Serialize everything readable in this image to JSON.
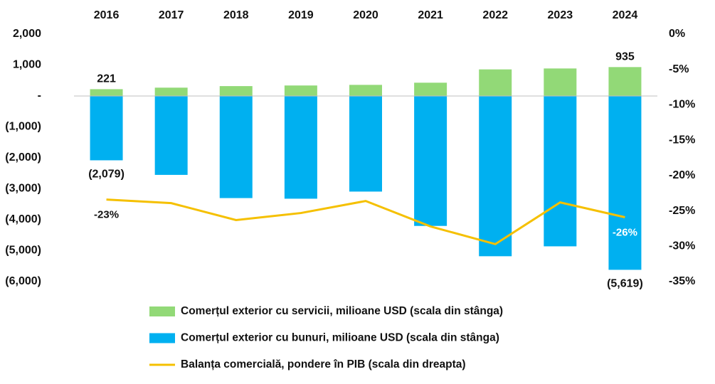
{
  "chart_data": {
    "type": "bar",
    "categories": [
      "2016",
      "2017",
      "2018",
      "2019",
      "2020",
      "2021",
      "2022",
      "2023",
      "2024"
    ],
    "series": [
      {
        "name": "Comerțul exterior cu servicii, milioane USD (scala din stânga)",
        "color": "#92d977",
        "values": [
          221,
          270,
          320,
          340,
          360,
          430,
          860,
          890,
          935
        ],
        "value_labels": [
          "221",
          null,
          null,
          null,
          null,
          null,
          null,
          null,
          "935"
        ]
      },
      {
        "name": "Comerțul exterior cu bunuri, milioane USD (scala din stânga)",
        "color": "#00b0f0",
        "values": [
          -2079,
          -2550,
          -3300,
          -3320,
          -3090,
          -4200,
          -5180,
          -4860,
          -5619
        ],
        "value_labels": [
          "(2,079)",
          null,
          null,
          null,
          null,
          null,
          null,
          null,
          "(5,619)"
        ]
      },
      {
        "name": "Balanța comercială, pondere în PIB (scala din dreapta)",
        "color": "#f5c000",
        "type": "line",
        "axis": "y2",
        "values": [
          -23.4,
          -23.9,
          -26.3,
          -25.3,
          -23.6,
          -27.2,
          -29.7,
          -23.8,
          -25.9
        ],
        "value_labels": [
          "-23%",
          null,
          null,
          null,
          null,
          null,
          null,
          null,
          "-26%"
        ]
      }
    ],
    "ylim": [
      -6000,
      2000
    ],
    "yticks": [
      {
        "value": -6000,
        "label": "(6,000)"
      },
      {
        "value": -5000,
        "label": "(5,000)"
      },
      {
        "value": -4000,
        "label": "(4,000)"
      },
      {
        "value": -3000,
        "label": "(3,000)"
      },
      {
        "value": -2000,
        "label": "(2,000)"
      },
      {
        "value": -1000,
        "label": "(1,000)"
      },
      {
        "value": 0,
        "label": "-"
      },
      {
        "value": 1000,
        "label": "1,000"
      },
      {
        "value": 2000,
        "label": "2,000"
      }
    ],
    "y2lim": [
      -35,
      0
    ],
    "y2ticks": [
      {
        "value": -35,
        "label": "-35%"
      },
      {
        "value": -30,
        "label": "-30%"
      },
      {
        "value": -25,
        "label": "-25%"
      },
      {
        "value": -20,
        "label": "-20%"
      },
      {
        "value": -15,
        "label": "-15%"
      },
      {
        "value": -10,
        "label": "-10%"
      },
      {
        "value": -5,
        "label": "-5%"
      },
      {
        "value": 0,
        "label": "0%"
      }
    ],
    "legend": "bottom"
  }
}
